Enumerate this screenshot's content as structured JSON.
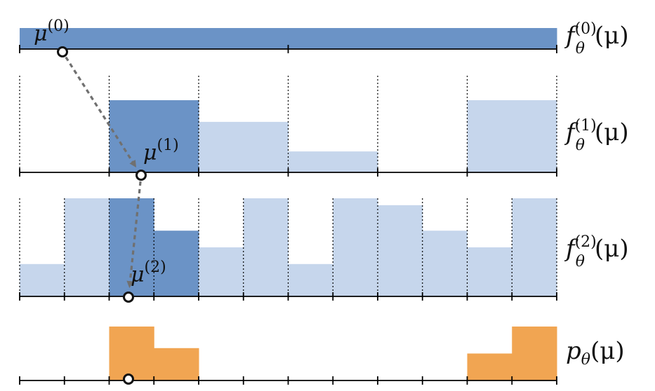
{
  "colors": {
    "dark_blue": "#6b93c6",
    "light_blue": "#c6d6ec",
    "orange": "#f1a552",
    "axis": "#000000",
    "arrow": "#707070"
  },
  "rows": [
    {
      "id": "level0",
      "label_base": "f",
      "label_sub": "θ",
      "label_sup": "(0)",
      "label_arg": "(μ)",
      "bins": 2,
      "heights": [
        1,
        1
      ],
      "highlight": [
        0,
        1
      ],
      "fill": "dark_blue"
    },
    {
      "id": "level1",
      "label_base": "f",
      "label_sub": "θ",
      "label_sup": "(1)",
      "label_arg": "(μ)",
      "bins": 6,
      "heights": [
        0,
        1.0,
        0.7,
        0.29,
        0,
        1.0
      ],
      "highlight": [
        1
      ],
      "fill": "light_blue"
    },
    {
      "id": "level2",
      "label_base": "f",
      "label_sub": "θ",
      "label_sup": "(2)",
      "label_arg": "(μ)",
      "bins": 12,
      "heights": [
        0.33,
        1.0,
        1.0,
        0.67,
        0.5,
        1.0,
        0.33,
        1.0,
        0.93,
        0.67,
        0.5,
        1.0
      ],
      "highlight": [
        2,
        3
      ],
      "fill": "light_blue"
    },
    {
      "id": "final",
      "label_base": "p",
      "label_sub": "θ",
      "label_sup": "",
      "label_arg": "(μ)",
      "bins": 12,
      "heights": [
        0,
        0,
        1.0,
        0.6,
        0,
        0,
        0,
        0,
        0,
        0,
        0.5,
        1.0
      ],
      "highlight": [],
      "fill": "orange"
    }
  ],
  "samples": [
    {
      "label_base": "μ",
      "label_sup": "(0)",
      "bin_position": 0.96,
      "row": 0
    },
    {
      "label_base": "μ",
      "label_sup": "(1)",
      "bin_position": 2.35,
      "row": 1
    },
    {
      "label_base": "μ",
      "label_sup": "(2)",
      "bin_position": 2.4,
      "row": 2
    },
    {
      "label_base": "",
      "label_sup": "",
      "bin_position": 2.4,
      "row": 3
    }
  ]
}
